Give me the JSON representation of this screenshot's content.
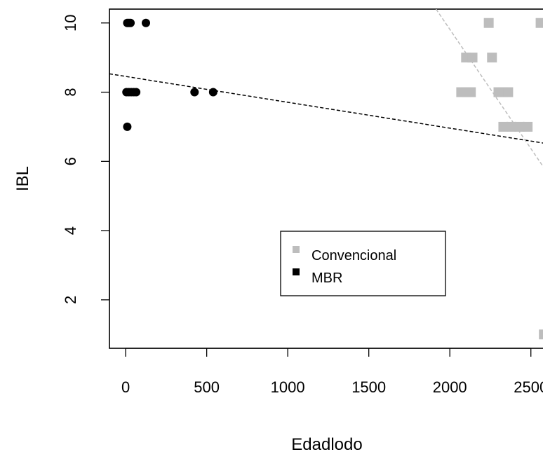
{
  "chart_data": {
    "type": "scatter",
    "xlabel": "Edadlodo",
    "ylabel": "IBL",
    "xlim": [
      -100,
      2670
    ],
    "ylim": [
      0.6,
      10.4
    ],
    "x_ticks": [
      0,
      500,
      1000,
      1500,
      2000,
      2500
    ],
    "y_ticks": [
      2,
      4,
      6,
      8,
      10
    ],
    "grid": false,
    "legend": {
      "position": "center",
      "entries": [
        {
          "label": "Convencional",
          "color": "#bdbdbd",
          "marker": "square"
        },
        {
          "label": "MBR",
          "color": "#000000",
          "marker": "square"
        }
      ]
    },
    "series": [
      {
        "name": "Convencional",
        "color": "#bdbdbd",
        "marker": "square",
        "points": [
          {
            "x": 2240,
            "y": 10
          },
          {
            "x": 2560,
            "y": 10
          },
          {
            "x": 2100,
            "y": 9
          },
          {
            "x": 2140,
            "y": 9
          },
          {
            "x": 2260,
            "y": 9
          },
          {
            "x": 2070,
            "y": 8
          },
          {
            "x": 2100,
            "y": 8
          },
          {
            "x": 2130,
            "y": 8
          },
          {
            "x": 2300,
            "y": 8
          },
          {
            "x": 2330,
            "y": 8
          },
          {
            "x": 2360,
            "y": 8
          },
          {
            "x": 2330,
            "y": 7
          },
          {
            "x": 2380,
            "y": 7
          },
          {
            "x": 2430,
            "y": 7
          },
          {
            "x": 2480,
            "y": 7
          },
          {
            "x": 2580,
            "y": 1
          }
        ]
      },
      {
        "name": "MBR",
        "color": "#000000",
        "marker": "circle",
        "points": [
          {
            "x": 10,
            "y": 10
          },
          {
            "x": 20,
            "y": 10
          },
          {
            "x": 30,
            "y": 10
          },
          {
            "x": 125,
            "y": 10
          },
          {
            "x": 5,
            "y": 8
          },
          {
            "x": 20,
            "y": 8
          },
          {
            "x": 35,
            "y": 8
          },
          {
            "x": 50,
            "y": 8
          },
          {
            "x": 65,
            "y": 8
          },
          {
            "x": 425,
            "y": 8
          },
          {
            "x": 540,
            "y": 8
          },
          {
            "x": 10,
            "y": 7
          }
        ]
      }
    ],
    "lines": [
      {
        "name": "MBR trend",
        "color": "#000000",
        "dash": "dashed",
        "x": [
          -100,
          2670
        ],
        "y": [
          8.53,
          6.46
        ]
      },
      {
        "name": "Convencional trend",
        "color": "#bdbdbd",
        "dash": "dashed",
        "x": [
          1915,
          2670
        ],
        "y": [
          10.4,
          5.2
        ]
      }
    ]
  }
}
